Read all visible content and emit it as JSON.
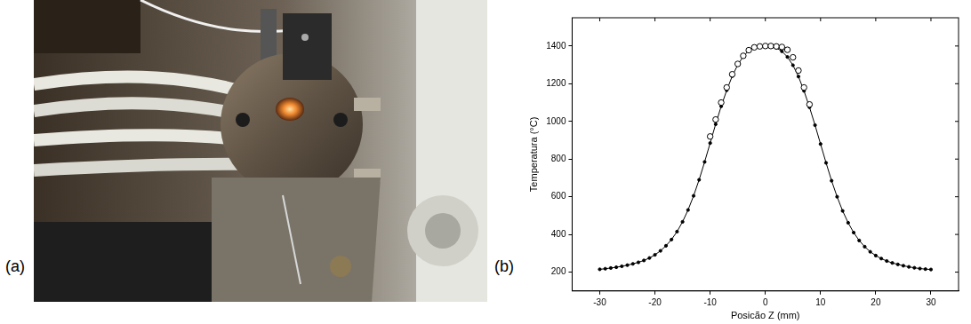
{
  "panels": {
    "a": {
      "label": "(a)"
    },
    "b": {
      "label": "(b)"
    }
  },
  "chart_data": {
    "type": "line",
    "x_label": "Posicão Z (mm)",
    "y_label": "Temperatura (°C)",
    "xlim": [
      -35,
      35
    ],
    "xticks": [
      -30,
      -20,
      -10,
      0,
      10,
      20,
      30
    ],
    "ylim": [
      100,
      1550
    ],
    "yticks": [
      200,
      400,
      600,
      800,
      1000,
      1200,
      1400
    ],
    "grid": false,
    "series": [
      {
        "color": "#000000",
        "marker": "dot",
        "line_style": "solid",
        "x": [
          -30,
          -29,
          -28,
          -27,
          -26,
          -25,
          -24,
          -23,
          -22,
          -21,
          -20,
          -19,
          -18,
          -17,
          -16,
          -15,
          -14,
          -13,
          -12,
          -11,
          -10,
          -9,
          -8,
          -7,
          -6,
          -5,
          -4,
          -3,
          -2,
          -1,
          0,
          1,
          2,
          3,
          4,
          5,
          6,
          7,
          8,
          9,
          10,
          11,
          12,
          13,
          14,
          15,
          16,
          17,
          18,
          19,
          20,
          21,
          22,
          23,
          24,
          25,
          26,
          27,
          28,
          29,
          30
        ],
        "values": [
          215,
          218,
          222,
          226,
          231,
          237,
          244,
          252,
          262,
          275,
          292,
          313,
          340,
          373,
          415,
          467,
          530,
          605,
          690,
          785,
          885,
          985,
          1080,
          1165,
          1240,
          1300,
          1345,
          1375,
          1392,
          1399,
          1400,
          1398,
          1390,
          1372,
          1342,
          1298,
          1238,
          1162,
          1075,
          980,
          880,
          780,
          685,
          600,
          525,
          462,
          410,
          368,
          335,
          308,
          288,
          272,
          259,
          249,
          241,
          234,
          228,
          223,
          219,
          216,
          214
        ]
      },
      {
        "color": "#000000",
        "marker": "circle_open",
        "line_style": "none",
        "x": [
          -10,
          -9,
          -8,
          -7,
          -6,
          -5,
          -4,
          -3,
          -2,
          -1,
          0,
          1,
          2,
          3,
          4,
          5,
          6,
          7,
          8
        ],
        "values": [
          920,
          1010,
          1100,
          1180,
          1250,
          1305,
          1348,
          1378,
          1393,
          1398,
          1400,
          1400,
          1398,
          1395,
          1380,
          1340,
          1270,
          1180,
          1090
        ]
      }
    ]
  }
}
